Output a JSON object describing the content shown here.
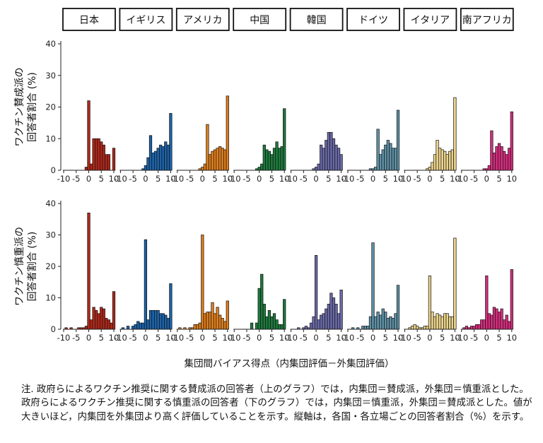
{
  "figure": {
    "xlabel": "集団間バイアス得点（内集団評価－外集団評価）",
    "note": "注. 政府らによるワクチン推奨に関する賛成派の回答者（上のグラフ）では，内集団＝賛成派，外集団＝慎重派とした。政府らによるワクチン推奨に関する慎重派の回答者（下のグラフ）では，内集団＝慎重派，外集団＝賛成派とした。値が大きいほど，内集団を外集団より高く評価していることを示す。縦軸は，各国・各立場ごとの回答者割合（%）を示す。"
  },
  "chart_data": {
    "type": "bar",
    "layout": "faceted-histogram",
    "facets": [
      "日本",
      "イギリス",
      "アメリカ",
      "中国",
      "韓国",
      "ドイツ",
      "イタリア",
      "南アフリカ"
    ],
    "colors": [
      "#b0281a",
      "#1c63a8",
      "#e07f1e",
      "#1e7a3d",
      "#6b6aa8",
      "#5f91a6",
      "#ecd48d",
      "#d62d7e"
    ],
    "xlim": [
      -10,
      10
    ],
    "x_ticks": [
      -10,
      -5,
      0,
      5,
      10
    ],
    "ylim": [
      0,
      40
    ],
    "y_ticks": [
      0,
      10,
      20,
      30,
      40
    ],
    "bins_x": [
      -10,
      -9,
      -8,
      -7,
      -6,
      -5,
      -4,
      -3,
      -2,
      -1,
      0,
      1,
      2,
      3,
      4,
      5,
      6,
      7,
      8,
      9,
      10
    ],
    "rows": [
      {
        "ylabel": "ワクチン賛成派の回答者割合 (%)",
        "series": [
          {
            "name": "日本",
            "values": [
              0,
              0,
              0,
              0,
              0,
              0,
              0,
              0,
              0,
              1,
              22,
              2,
              10,
              10,
              10,
              9,
              8,
              5,
              5,
              0,
              7
            ]
          },
          {
            "name": "イギリス",
            "values": [
              0,
              0,
              0,
              0,
              0,
              0,
              0,
              0,
              0,
              0.5,
              1.5,
              4,
              11,
              5.5,
              6,
              7,
              8,
              7.5,
              9,
              8,
              18
            ]
          },
          {
            "name": "アメリカ",
            "values": [
              0,
              0,
              0,
              0,
              0,
              0,
              0,
              0,
              0,
              0.5,
              1,
              2,
              14.5,
              5,
              6,
              6.5,
              7,
              7.5,
              7,
              6.5,
              23.5
            ]
          },
          {
            "name": "中国",
            "values": [
              0,
              0,
              0,
              0,
              0,
              0,
              0,
              0,
              0,
              0.5,
              1,
              2,
              8,
              6.5,
              6,
              5,
              7,
              9,
              7,
              7.5,
              19.5
            ]
          },
          {
            "name": "韓国",
            "values": [
              0,
              0,
              0,
              0,
              0,
              0,
              0,
              0,
              0,
              0.5,
              1,
              2,
              8,
              7,
              9.5,
              12,
              12,
              10,
              8,
              7,
              5
            ]
          },
          {
            "name": "ドイツ",
            "values": [
              0,
              0,
              0,
              0,
              0,
              0,
              0,
              0,
              0,
              0.5,
              0.5,
              1,
              13,
              5,
              6.5,
              8,
              9.5,
              8.5,
              7,
              7,
              19
            ]
          },
          {
            "name": "イタリア",
            "values": [
              0,
              0,
              0,
              0,
              0,
              0,
              0,
              0,
              0,
              0.5,
              1,
              2.5,
              5,
              9.5,
              7,
              6.5,
              6,
              5,
              6,
              6.5,
              23
            ]
          },
          {
            "name": "南アフリカ",
            "values": [
              0,
              0,
              0,
              0,
              0,
              0,
              0,
              0,
              0,
              0.5,
              0.5,
              1.5,
              12.5,
              5.5,
              7.5,
              8.5,
              7.5,
              6,
              5,
              7,
              18.5
            ]
          }
        ]
      },
      {
        "ylabel": "ワクチン慎重派の回答者割合 (%)",
        "series": [
          {
            "name": "日本",
            "values": [
              0,
              0.5,
              0,
              0.5,
              0,
              0,
              0.5,
              0.5,
              0.5,
              1,
              37,
              3,
              7,
              6,
              5,
              7,
              6.5,
              3.5,
              3,
              2,
              12
            ]
          },
          {
            "name": "イギリス",
            "values": [
              0,
              0.5,
              0,
              1,
              0,
              1,
              1.5,
              2.5,
              2,
              2,
              28.5,
              3,
              6,
              6,
              6,
              6,
              5,
              5,
              4.5,
              3.5,
              14.5
            ]
          },
          {
            "name": "アメリカ",
            "values": [
              0,
              0.5,
              0,
              0.5,
              0,
              0.5,
              0.5,
              1.5,
              1.5,
              2,
              30,
              5,
              5.5,
              5.5,
              8.5,
              5,
              7,
              4.5,
              3.5,
              2.5,
              9
            ]
          },
          {
            "name": "中国",
            "values": [
              0,
              0,
              0,
              0,
              0,
              0,
              0,
              2,
              0,
              2,
              13,
              17.5,
              8,
              4,
              6,
              4,
              5,
              3,
              1.5,
              1.5,
              9.5
            ]
          },
          {
            "name": "韓国",
            "values": [
              0,
              0,
              0,
              0.5,
              0,
              0.5,
              1,
              0.5,
              2,
              4,
              23.5,
              3,
              4.5,
              5,
              6.5,
              8,
              11.5,
              10,
              8,
              5,
              12.5
            ]
          },
          {
            "name": "ドイツ",
            "values": [
              0,
              0,
              0.5,
              0,
              0.5,
              0,
              1,
              1,
              1,
              4,
              27.5,
              4,
              5.5,
              4.5,
              6.5,
              5.5,
              3.5,
              4,
              3.5,
              5,
              14
            ]
          },
          {
            "name": "イタリア",
            "values": [
              0,
              0,
              0.5,
              1,
              1.5,
              1,
              0.5,
              0.5,
              1,
              1,
              17,
              5.5,
              4,
              5,
              4.5,
              4,
              5,
              5,
              4,
              4,
              29
            ]
          },
          {
            "name": "南アフリカ",
            "values": [
              0,
              0.5,
              1,
              0.5,
              1,
              1,
              1.5,
              1.5,
              3,
              3,
              17,
              5,
              4.5,
              7,
              6.5,
              5.5,
              6.5,
              3,
              4.5,
              2.5,
              19
            ]
          }
        ]
      }
    ]
  }
}
